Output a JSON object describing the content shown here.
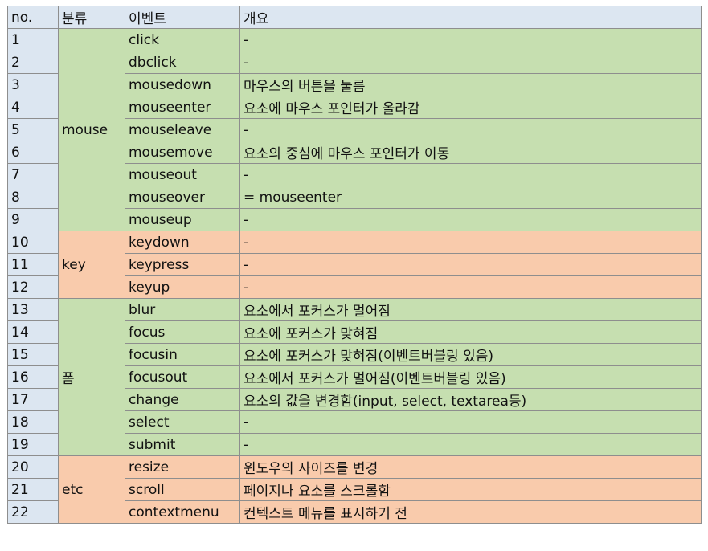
{
  "headers": [
    "no.",
    "분류",
    "이벤트",
    "개요"
  ],
  "colors": {
    "header": "#dce6f1",
    "mouse": "#c6dfb0",
    "key": "#f9cbac",
    "form": "#c6dfb0",
    "etc": "#f9cbac"
  },
  "groups": [
    {
      "category": "mouse",
      "color": "green",
      "rows": [
        {
          "no": "1",
          "event": "click",
          "desc": "-"
        },
        {
          "no": "2",
          "event": "dbclick",
          "desc": "-"
        },
        {
          "no": "3",
          "event": "mousedown",
          "desc": "마우스의 버튼을 눌름"
        },
        {
          "no": "4",
          "event": "mouseenter",
          "desc": "요소에 마우스 포인터가 올라감"
        },
        {
          "no": "5",
          "event": "mouseleave",
          "desc": "-"
        },
        {
          "no": "6",
          "event": "mousemove",
          "desc": "요소의 중심에 마우스 포인터가 이동"
        },
        {
          "no": "7",
          "event": "mouseout",
          "desc": "-"
        },
        {
          "no": "8",
          "event": "mouseover",
          "desc": "= mouseenter"
        },
        {
          "no": "9",
          "event": "mouseup",
          "desc": "-"
        }
      ]
    },
    {
      "category": "key",
      "color": "orange",
      "rows": [
        {
          "no": "10",
          "event": "keydown",
          "desc": "-"
        },
        {
          "no": "11",
          "event": "keypress",
          "desc": "-"
        },
        {
          "no": "12",
          "event": "keyup",
          "desc": "-"
        }
      ]
    },
    {
      "category": "폼",
      "color": "green",
      "rows": [
        {
          "no": "13",
          "event": "blur",
          "desc": "요소에서 포커스가 멀어짐"
        },
        {
          "no": "14",
          "event": "focus",
          "desc": "요소에 포커스가 맞혀짐"
        },
        {
          "no": "15",
          "event": "focusin",
          "desc": "요소에 포커스가 맞혀짐(이벤트버블링 있음)"
        },
        {
          "no": "16",
          "event": "focusout",
          "desc": "요소에서 포커스가 멀어짐(이벤트버블링 있음)"
        },
        {
          "no": "17",
          "event": "change",
          "desc": "요소의 값을 변경함(input, select, textarea등)"
        },
        {
          "no": "18",
          "event": "select",
          "desc": "-"
        },
        {
          "no": "19",
          "event": "submit",
          "desc": "-"
        }
      ]
    },
    {
      "category": "etc",
      "color": "orange",
      "rows": [
        {
          "no": "20",
          "event": "resize",
          "desc": "윈도우의 사이즈를 변경"
        },
        {
          "no": "21",
          "event": "scroll",
          "desc": "페이지나 요소를 스크롤함"
        },
        {
          "no": "22",
          "event": "contextmenu",
          "desc": "컨텍스트 메뉴를 표시하기 전"
        }
      ]
    }
  ]
}
